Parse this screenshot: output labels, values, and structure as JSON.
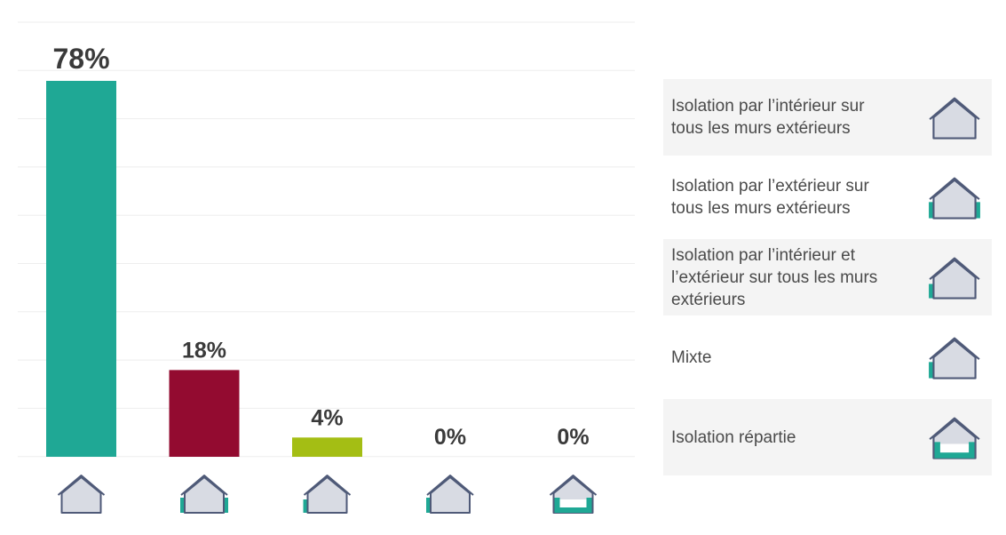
{
  "chart_data": {
    "type": "bar",
    "categories": [
      "Isolation par l’intérieur sur tous les murs extérieurs",
      "Isolation par l’extérieur sur tous les murs extérieurs",
      "Isolation par l’intérieur et l’extérieur sur tous les murs extérieurs",
      "Mixte",
      "Isolation répartie"
    ],
    "values": [
      78,
      18,
      4,
      0,
      0
    ],
    "data_labels": [
      "78%",
      "18%",
      "4%",
      "0%",
      "0%"
    ],
    "colors": [
      "#1fa895",
      "#930b30",
      "#a4be14",
      "#1fa895",
      "#1fa895"
    ],
    "ylim": [
      0,
      78
    ],
    "grid": true,
    "legend_position": "right"
  },
  "legend": {
    "items": [
      {
        "label": "Isolation par l’intérieur sur tous les murs extérieurs",
        "icon": "house-interior-insulation-icon"
      },
      {
        "label": "Isolation par l’extérieur sur tous les murs extérieurs",
        "icon": "house-exterior-insulation-icon"
      },
      {
        "label": "Isolation par l’intérieur et l’extérieur sur tous les murs extérieurs",
        "icon": "house-interior-exterior-insulation-icon"
      },
      {
        "label": "Mixte",
        "icon": "house-mixed-insulation-icon"
      },
      {
        "label": "Isolation répartie",
        "icon": "house-distributed-insulation-icon"
      }
    ]
  },
  "colors": {
    "house_fill": "#d8dbe3",
    "house_stroke": "#4f5a78",
    "insulation": "#1fa895",
    "grid": "#eeeeee"
  }
}
